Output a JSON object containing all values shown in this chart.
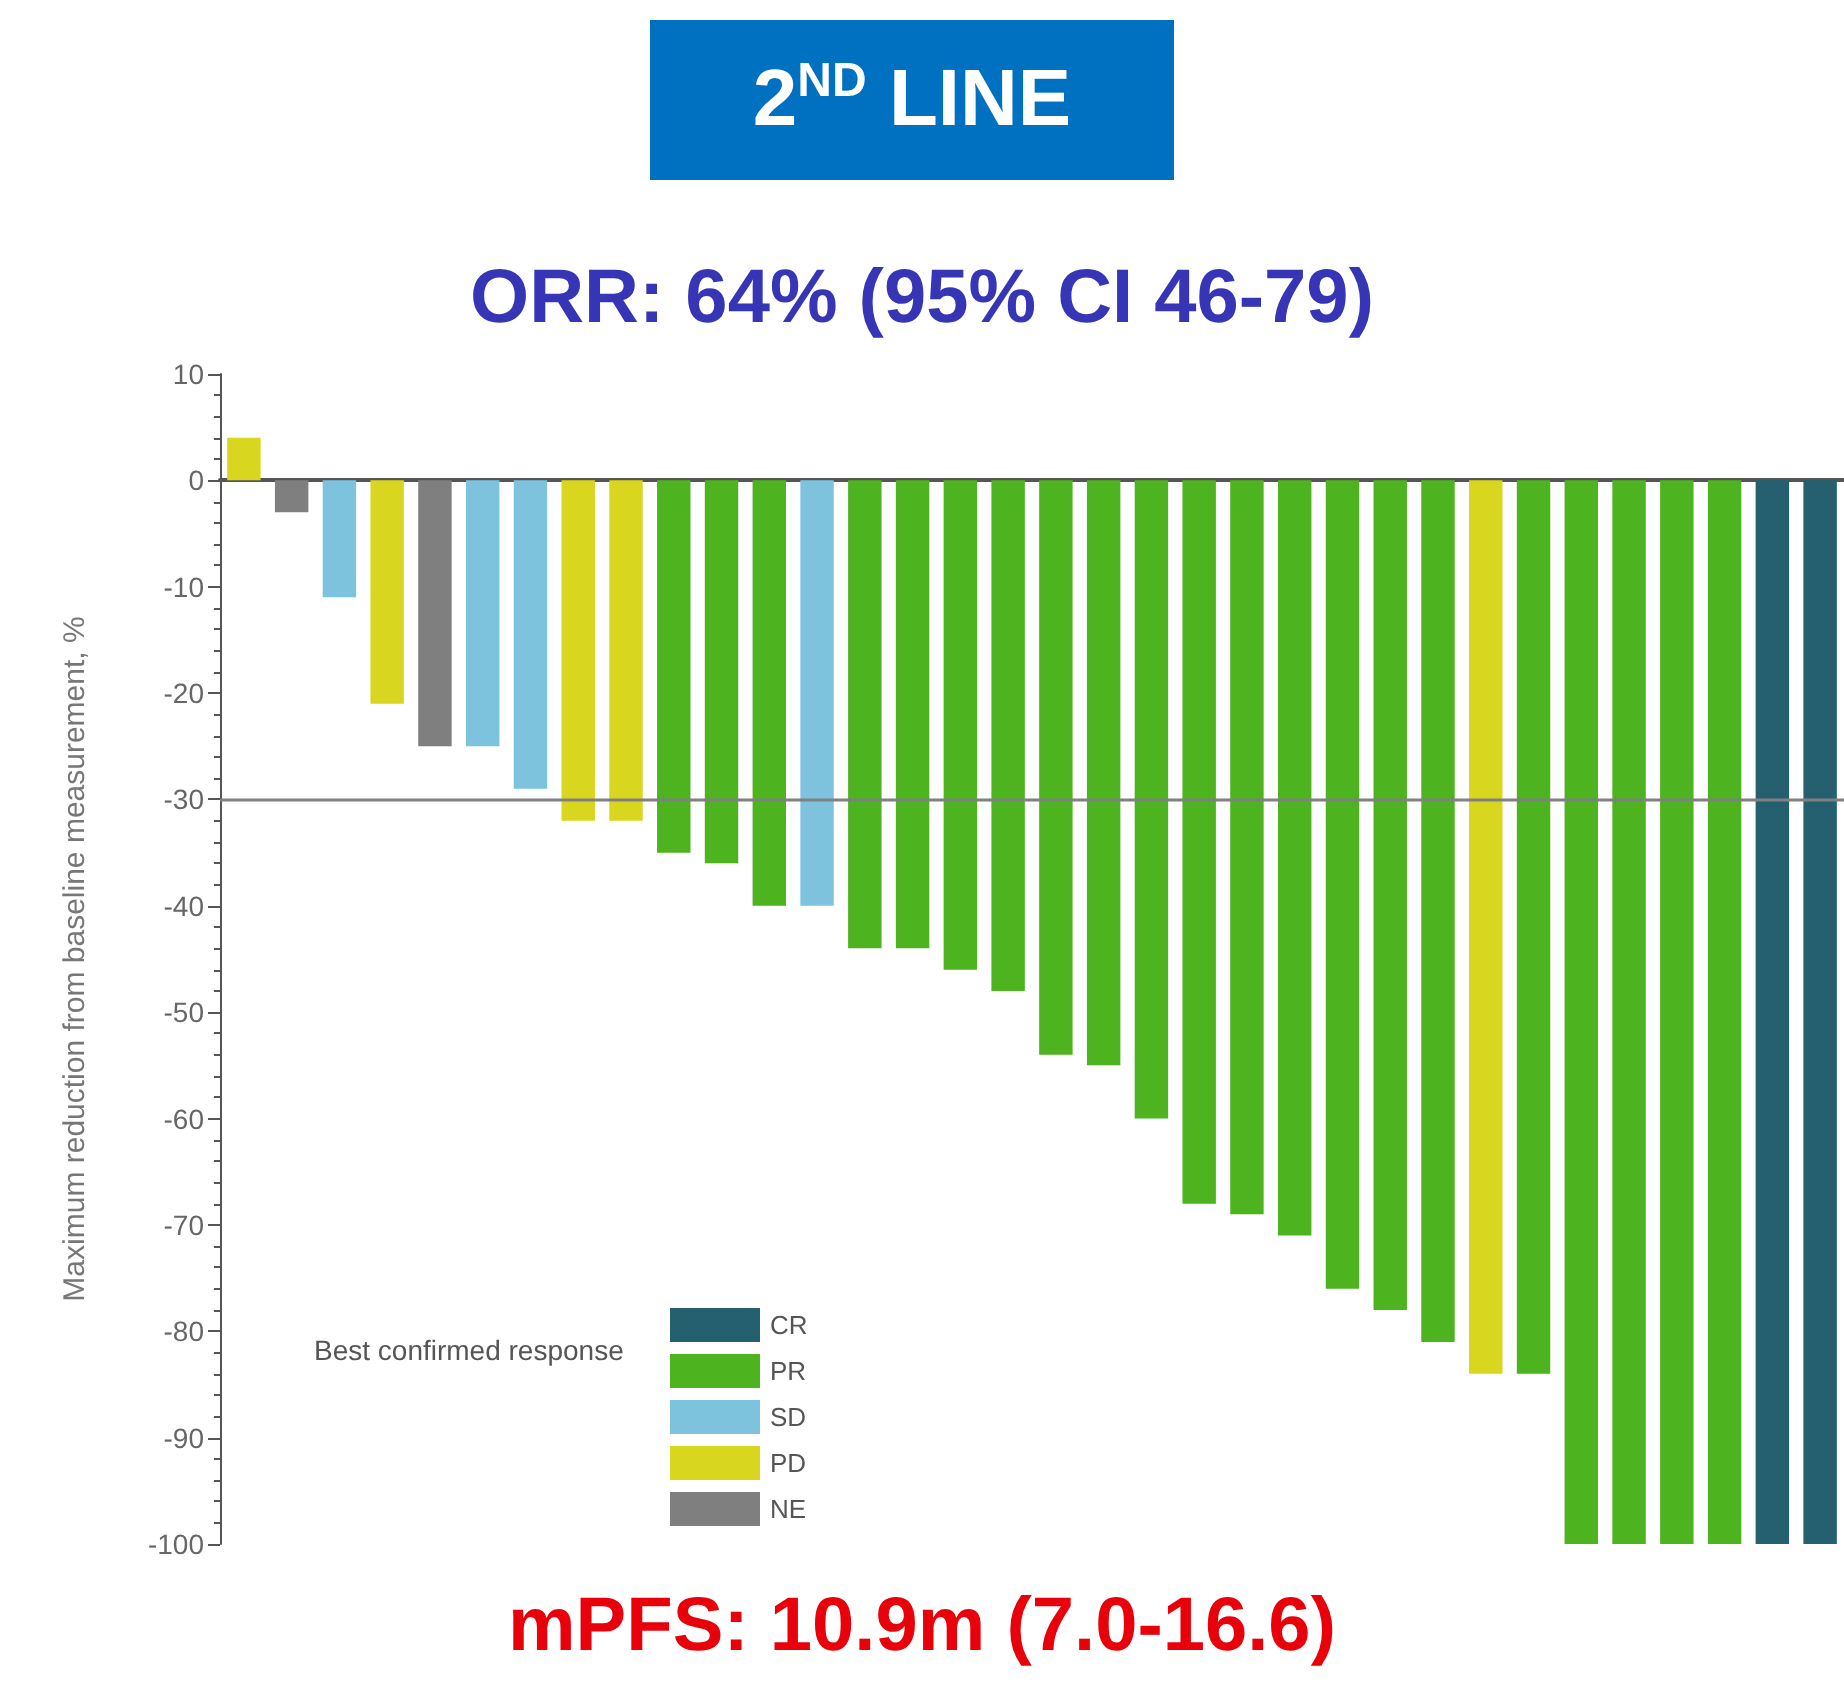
{
  "chart_data": {
    "type": "bar",
    "title": "2$^{ND}$ LINE",
    "subtitle": "ORR: 64% (95% CI 46-79)",
    "ylabel": "Maximum reduction from baseline measurement, %",
    "legend_title": "Best confirmed response",
    "annotations": [
      "mPFS: 10.9m (7.0-16.6)"
    ],
    "categories": [
      null,
      null,
      null,
      null,
      null,
      null,
      null,
      null,
      null,
      null,
      null,
      null,
      null,
      null,
      null,
      null,
      null,
      null,
      null,
      null,
      null,
      null,
      null,
      null,
      null,
      null,
      null,
      null,
      null,
      null,
      null,
      null,
      null,
      null
    ],
    "series": [
      {
        "name": "CR",
        "color": "#24606e",
        "values": [
          null,
          null,
          null,
          null,
          null,
          null,
          null,
          null,
          null,
          null,
          null,
          null,
          null,
          null,
          null,
          null,
          null,
          null,
          null,
          null,
          null,
          null,
          null,
          null,
          null,
          null,
          null,
          null,
          null,
          null,
          null,
          null,
          -100,
          -100
        ]
      },
      {
        "name": "PR",
        "color": "#4db31f",
        "values": [
          null,
          null,
          null,
          null,
          null,
          null,
          null,
          null,
          null,
          -35,
          -36,
          -40,
          null,
          -44,
          -44,
          -46,
          -48,
          -54,
          -55,
          -60,
          -68,
          -69,
          -71,
          -76,
          -78,
          -81,
          null,
          -84,
          -100,
          -100,
          -100,
          -100,
          null,
          null
        ]
      },
      {
        "name": "SD",
        "color": "#7ec3de",
        "values": [
          null,
          null,
          -11,
          null,
          null,
          -25,
          -29,
          null,
          null,
          null,
          null,
          null,
          -40,
          null,
          null,
          null,
          null,
          null,
          null,
          null,
          null,
          null,
          null,
          null,
          null,
          null,
          null,
          null,
          null,
          null,
          null,
          null,
          null,
          null
        ]
      },
      {
        "name": "PD",
        "color": "#d8d61f",
        "values": [
          4,
          null,
          null,
          -21,
          null,
          null,
          null,
          -32,
          -32,
          null,
          null,
          null,
          null,
          null,
          null,
          null,
          null,
          null,
          null,
          null,
          null,
          null,
          null,
          null,
          null,
          null,
          -84,
          null,
          null,
          null,
          null,
          null,
          null,
          null
        ]
      },
      {
        "name": "NE",
        "color": "#7f7f7f",
        "values": [
          null,
          -3,
          null,
          null,
          -25,
          null,
          null,
          null,
          null,
          null,
          null,
          null,
          null,
          null,
          null,
          null,
          null,
          null,
          null,
          null,
          null,
          null,
          null,
          null,
          null,
          null,
          null,
          null,
          null,
          null,
          null,
          null,
          null,
          null
        ]
      }
    ],
    "stacked": true,
    "ylim": [
      -100,
      10
    ],
    "yticks": [
      -100,
      -90,
      -80,
      -70,
      -60,
      -50,
      -40,
      -30,
      -20,
      -10,
      0,
      10
    ],
    "ref_lines": [
      {
        "axis": "y",
        "value": -30,
        "color": "#808080"
      }
    ],
    "legend": "bottom left",
    "grid": false
  }
}
